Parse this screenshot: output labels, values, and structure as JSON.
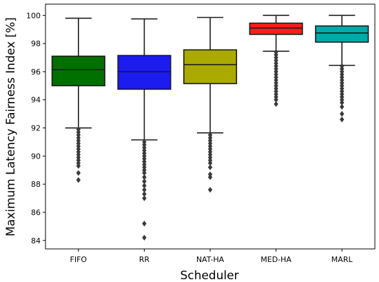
{
  "chart_data": {
    "type": "box",
    "title": "",
    "xlabel": "Scheduler",
    "ylabel": "Maximum Latency Fairness Index [%]",
    "ylim": [
      83.4,
      100.8
    ],
    "yticks": [
      84,
      86,
      88,
      90,
      92,
      94,
      96,
      98,
      100
    ],
    "categories": [
      "FIFO",
      "RR",
      "NAT-HA",
      "MED-HA",
      "MARL"
    ],
    "colors": [
      "#007000",
      "#1c1cf0",
      "#aaaa00",
      "#ff1c1c",
      "#00aaaa"
    ],
    "boxes": [
      {
        "name": "FIFO",
        "whisker_low": 92.0,
        "q1": 95.0,
        "median": 96.15,
        "q3": 97.1,
        "whisker_high": 99.8,
        "outliers": [
          91.9,
          91.7,
          91.5,
          91.3,
          91.1,
          90.9,
          90.7,
          90.5,
          90.3,
          90.1,
          89.9,
          89.7,
          89.5,
          89.3,
          88.8,
          88.3
        ]
      },
      {
        "name": "RR",
        "whisker_low": 91.15,
        "q1": 94.75,
        "median": 96.0,
        "q3": 97.15,
        "whisker_high": 99.75,
        "outliers": [
          91.0,
          90.8,
          90.6,
          90.4,
          90.2,
          90.0,
          89.8,
          89.6,
          89.4,
          89.2,
          89.0,
          88.8,
          88.5,
          88.2,
          87.9,
          87.6,
          87.3,
          87.0,
          85.2,
          84.2
        ]
      },
      {
        "name": "NAT-HA",
        "whisker_low": 91.65,
        "q1": 95.15,
        "median": 96.5,
        "q3": 97.55,
        "whisker_high": 99.85,
        "outliers": [
          91.5,
          91.3,
          91.1,
          90.9,
          90.7,
          90.5,
          90.3,
          90.1,
          89.9,
          89.7,
          89.5,
          89.2,
          88.7,
          88.5,
          87.6
        ]
      },
      {
        "name": "MED-HA",
        "whisker_low": 97.45,
        "q1": 98.65,
        "median": 99.1,
        "q3": 99.45,
        "whisker_high": 100.0,
        "outliers": [
          97.4,
          97.2,
          97.0,
          96.8,
          96.6,
          96.4,
          96.2,
          96.0,
          95.8,
          95.6,
          95.4,
          95.2,
          95.0,
          94.8,
          94.6,
          94.4,
          94.2,
          94.0,
          93.7
        ]
      },
      {
        "name": "MARL",
        "whisker_low": 96.45,
        "q1": 98.1,
        "median": 98.75,
        "q3": 99.25,
        "whisker_high": 100.0,
        "outliers": [
          96.4,
          96.2,
          96.0,
          95.8,
          95.6,
          95.4,
          95.2,
          95.0,
          94.8,
          94.6,
          94.4,
          94.2,
          94.0,
          93.8,
          93.5,
          93.0,
          92.6
        ]
      }
    ]
  }
}
